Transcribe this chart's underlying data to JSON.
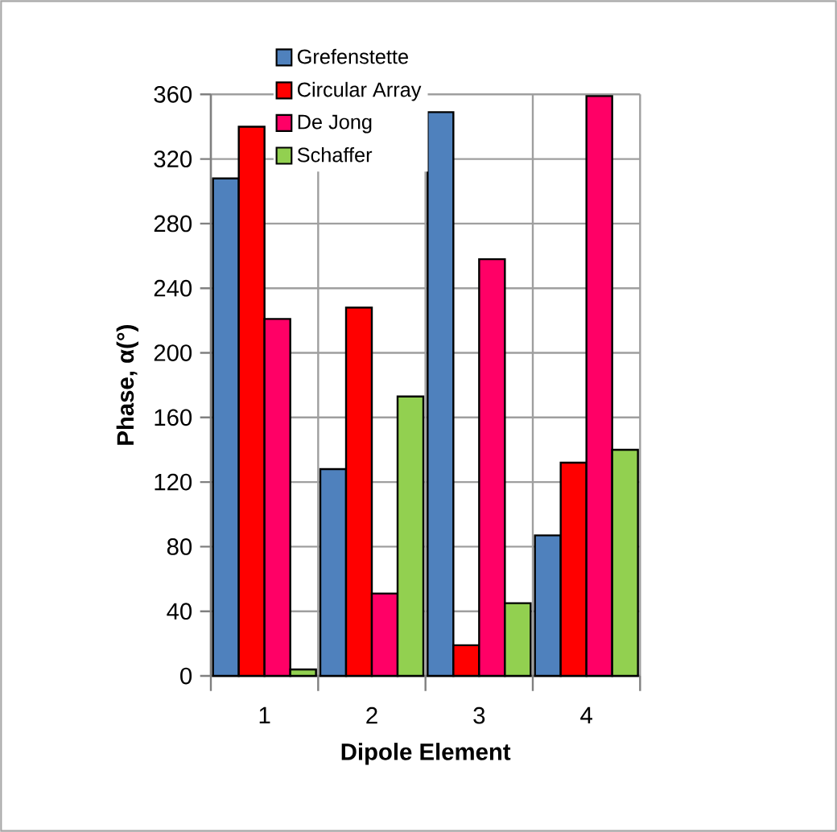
{
  "chart_data": {
    "type": "bar",
    "xlabel": "Dipole Element",
    "ylabel": "Phase, α(°)",
    "categories": [
      "1",
      "2",
      "3",
      "4"
    ],
    "series": [
      {
        "name": "Grefenstette",
        "color": "#4f81bd",
        "values": [
          308,
          128,
          349,
          87
        ]
      },
      {
        "name": "Circular Array",
        "color": "#ff0000",
        "values": [
          340,
          228,
          19,
          132
        ]
      },
      {
        "name": "De Jong",
        "color": "#ff0066",
        "values": [
          221,
          51,
          258,
          359
        ]
      },
      {
        "name": "Schaffer",
        "color": "#92d050",
        "values": [
          4,
          173,
          45,
          140
        ]
      }
    ],
    "ylim": [
      0,
      360
    ],
    "yticks": [
      0,
      40,
      80,
      120,
      160,
      200,
      240,
      280,
      320,
      360
    ],
    "grid": true,
    "legend": "top left"
  }
}
